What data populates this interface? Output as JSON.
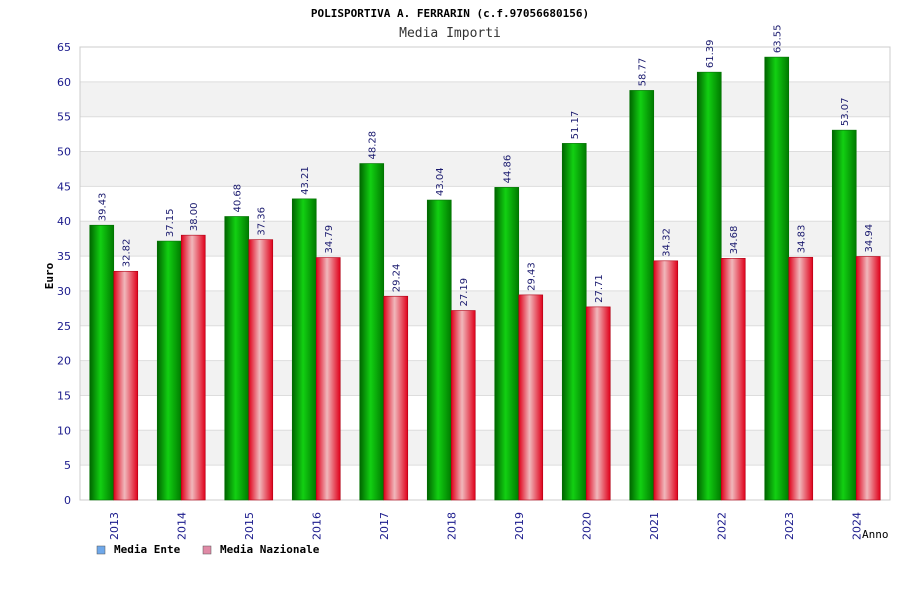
{
  "chart_data": {
    "type": "bar",
    "title": "POLISPORTIVA A. FERRARIN (c.f.97056680156)",
    "subtitle": "Media Importi",
    "xlabel": "Anno",
    "ylabel": "Euro",
    "ylim": [
      0,
      65
    ],
    "yticks": [
      0,
      5,
      10,
      15,
      20,
      25,
      30,
      35,
      40,
      45,
      50,
      55,
      60,
      65
    ],
    "grid": true,
    "legend_position": "bottom-left",
    "categories": [
      "2013",
      "2014",
      "2015",
      "2016",
      "2017",
      "2018",
      "2019",
      "2020",
      "2021",
      "2022",
      "2023",
      "2024"
    ],
    "series": [
      {
        "name": "Media Ente",
        "color": "#00a000",
        "legend_color": "#6fa8ea",
        "values": [
          39.43,
          37.15,
          40.68,
          43.21,
          48.28,
          43.04,
          44.86,
          51.17,
          58.77,
          61.39,
          63.55,
          53.07
        ],
        "labels": [
          "39.43",
          "37.15",
          "40.68",
          "43.21",
          "48.28",
          "43.04",
          "44.86",
          "51.17",
          "58.77",
          "61.39",
          "63.55",
          "53.07"
        ]
      },
      {
        "name": "Media Nazionale",
        "color": "#e8001c",
        "legend_color": "#e08aa6",
        "values": [
          32.82,
          38.0,
          37.36,
          34.79,
          29.24,
          27.19,
          29.43,
          27.71,
          34.32,
          34.68,
          34.83,
          34.94
        ],
        "labels": [
          "32.82",
          "38.00",
          "37.36",
          "34.79",
          "29.24",
          "27.19",
          "29.43",
          "27.71",
          "34.32",
          "34.68",
          "34.83",
          "34.94"
        ]
      }
    ]
  }
}
